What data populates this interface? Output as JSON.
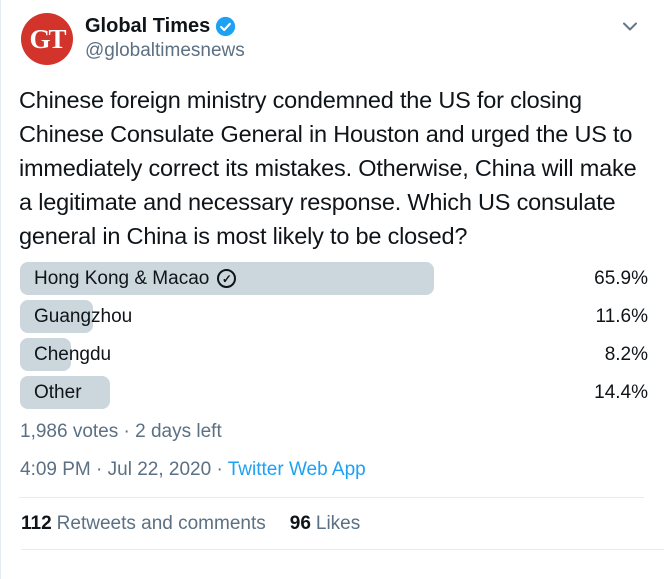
{
  "header": {
    "avatar_initials": "GT",
    "display_name": "Global Times",
    "handle": "@globaltimesnews"
  },
  "tweet": {
    "text": "Chinese foreign ministry condemned the US for closing Chinese Consulate General in Houston and urged the US to immediately correct its mistakes. Otherwise, China will make a legitimate and necessary response. Which US consulate general in China is most likely to be closed?"
  },
  "poll": {
    "options": [
      {
        "label": "Hong Kong & Macao",
        "percent": 65.9,
        "percent_label": "65.9%",
        "voted": true
      },
      {
        "label": "Guangzhou",
        "percent": 11.6,
        "percent_label": "11.6%",
        "voted": false
      },
      {
        "label": "Chengdu",
        "percent": 8.2,
        "percent_label": "8.2%",
        "voted": false
      },
      {
        "label": "Other",
        "percent": 14.4,
        "percent_label": "14.4%",
        "voted": false
      }
    ],
    "voted_check_glyph": "✓",
    "meta": "1,986 votes · 2 days left"
  },
  "meta": {
    "timestamp": "4:09 PM · Jul 22, 2020 · ",
    "source": "Twitter Web App"
  },
  "stats": {
    "retweets_count": "112",
    "retweets_label": "Retweets and comments",
    "likes_count": "96",
    "likes_label": "Likes"
  },
  "colors": {
    "accent_blue": "#1da1f2",
    "avatar_red": "#d2332a",
    "poll_bar": "#ccd6dd",
    "text_primary": "#0f1419",
    "text_secondary": "#5b7083",
    "divider": "#e6ecf0"
  }
}
